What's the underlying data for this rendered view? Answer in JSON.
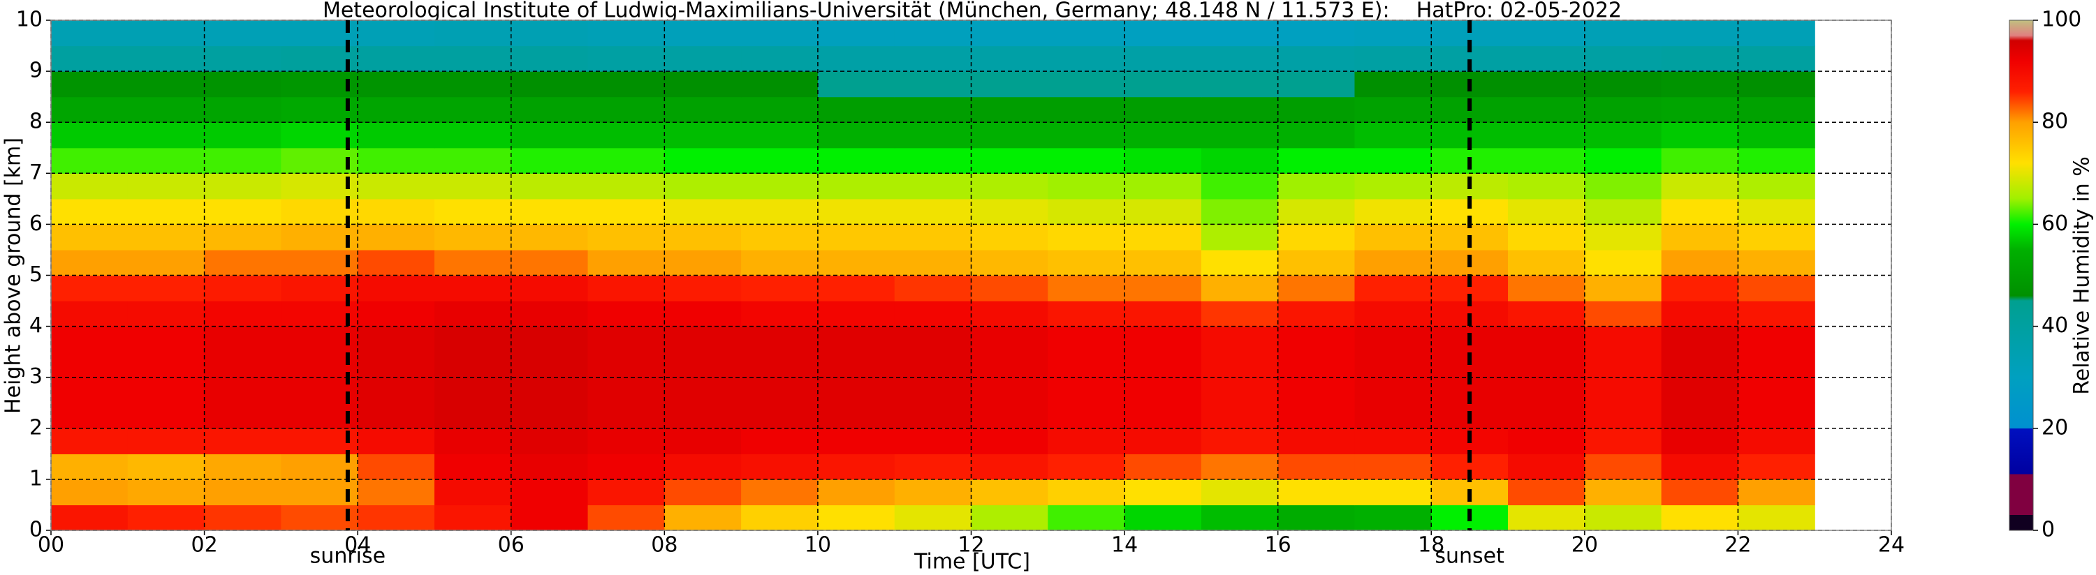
{
  "chart_data": {
    "type": "heatmap",
    "title": "Meteorological Institute of Ludwig-Maximilians-Universität (München, Germany; 48.148 N / 11.573 E):    HatPro: 02-05-2022",
    "xlabel": "Time [UTC]",
    "ylabel": "Height above ground [km]",
    "colorbar_label": "Relative Humidity in %",
    "xlim": [
      0,
      24
    ],
    "ylim": [
      0,
      10
    ],
    "clim": [
      0,
      100
    ],
    "xticks": [
      {
        "value": 0,
        "label": "00"
      },
      {
        "value": 2,
        "label": "02"
      },
      {
        "value": 4,
        "label": "04"
      },
      {
        "value": 6,
        "label": "06"
      },
      {
        "value": 8,
        "label": "08"
      },
      {
        "value": 10,
        "label": "10"
      },
      {
        "value": 12,
        "label": "12"
      },
      {
        "value": 14,
        "label": "14"
      },
      {
        "value": 16,
        "label": "16"
      },
      {
        "value": 18,
        "label": "18"
      },
      {
        "value": 20,
        "label": "20"
      },
      {
        "value": 22,
        "label": "22"
      },
      {
        "value": 24,
        "label": "24"
      }
    ],
    "yticks": [
      0,
      1,
      2,
      3,
      4,
      5,
      6,
      7,
      8,
      9,
      10
    ],
    "cticks": [
      0,
      20,
      40,
      60,
      80,
      100
    ],
    "grid": true,
    "annotations": [
      {
        "text": "sunrise",
        "x": 3.87
      },
      {
        "text": "sunset",
        "x": 18.5
      }
    ],
    "colorscale": [
      [
        0,
        "#100020"
      ],
      [
        3,
        "#100020"
      ],
      [
        3,
        "#800040"
      ],
      [
        11,
        "#800040"
      ],
      [
        11,
        "#0000a0"
      ],
      [
        20,
        "#0010c0"
      ],
      [
        20,
        "#0090d0"
      ],
      [
        30,
        "#00a0c0"
      ],
      [
        45,
        "#00a090"
      ],
      [
        46,
        "#009000"
      ],
      [
        55,
        "#00b000"
      ],
      [
        60,
        "#00f000"
      ],
      [
        65,
        "#a0f000"
      ],
      [
        72,
        "#ffe000"
      ],
      [
        80,
        "#ffa000"
      ],
      [
        86,
        "#ff2000"
      ],
      [
        92,
        "#f00000"
      ],
      [
        96,
        "#d00000"
      ],
      [
        97,
        "#e08080"
      ],
      [
        100,
        "#c0c080"
      ]
    ],
    "x_edges": [
      0,
      1,
      2,
      3,
      4,
      5,
      6,
      7,
      8,
      9,
      10,
      11,
      12,
      13,
      14,
      15,
      16,
      17,
      18,
      19,
      20,
      21,
      22,
      23
    ],
    "y_edges": [
      0,
      0.5,
      1,
      1.5,
      2,
      2.5,
      3,
      3.5,
      4,
      4.5,
      5,
      5.5,
      6,
      6.5,
      7,
      7.5,
      8,
      8.5,
      9,
      9.5,
      10
    ],
    "values": [
      [
        88,
        86,
        85,
        84,
        85,
        88,
        92,
        84,
        78,
        74,
        72,
        70,
        66,
        62,
        58,
        56,
        54,
        55,
        60,
        70,
        68,
        72,
        70
      ],
      [
        80,
        79,
        80,
        80,
        82,
        90,
        92,
        88,
        84,
        82,
        80,
        78,
        76,
        74,
        72,
        70,
        72,
        72,
        76,
        84,
        78,
        84,
        80
      ],
      [
        78,
        77,
        79,
        80,
        84,
        92,
        93,
        92,
        90,
        89,
        88,
        87,
        88,
        86,
        84,
        82,
        84,
        84,
        86,
        90,
        84,
        90,
        86
      ],
      [
        88,
        88,
        88,
        88,
        90,
        93,
        94,
        93,
        93,
        92,
        92,
        92,
        92,
        90,
        90,
        88,
        90,
        90,
        91,
        92,
        88,
        93,
        90
      ],
      [
        92,
        92,
        93,
        93,
        94,
        95,
        95,
        94,
        94,
        94,
        94,
        94,
        93,
        92,
        92,
        90,
        92,
        93,
        93,
        93,
        90,
        94,
        92
      ],
      [
        92,
        92,
        93,
        93,
        94,
        95,
        95,
        94,
        94,
        94,
        94,
        94,
        93,
        92,
        92,
        90,
        92,
        93,
        93,
        93,
        90,
        94,
        92
      ],
      [
        92,
        92,
        93,
        93,
        94,
        95,
        95,
        94,
        94,
        94,
        94,
        94,
        93,
        92,
        92,
        90,
        92,
        93,
        93,
        93,
        90,
        94,
        92
      ],
      [
        92,
        92,
        93,
        93,
        94,
        95,
        95,
        94,
        94,
        94,
        94,
        94,
        93,
        92,
        92,
        90,
        92,
        93,
        93,
        93,
        90,
        94,
        92
      ],
      [
        90,
        90,
        91,
        91,
        92,
        93,
        93,
        92,
        92,
        91,
        91,
        91,
        90,
        88,
        88,
        85,
        88,
        90,
        90,
        88,
        84,
        90,
        88
      ],
      [
        86,
        86,
        87,
        88,
        90,
        90,
        90,
        88,
        87,
        86,
        86,
        85,
        84,
        82,
        82,
        78,
        82,
        86,
        86,
        82,
        78,
        86,
        84
      ],
      [
        80,
        80,
        82,
        82,
        84,
        82,
        82,
        80,
        80,
        78,
        78,
        78,
        77,
        76,
        76,
        72,
        76,
        80,
        80,
        76,
        72,
        80,
        78
      ],
      [
        76,
        76,
        77,
        78,
        78,
        77,
        77,
        76,
        76,
        75,
        75,
        75,
        74,
        73,
        73,
        66,
        73,
        76,
        76,
        73,
        70,
        76,
        74
      ],
      [
        72,
        72,
        72,
        73,
        73,
        72,
        72,
        72,
        71,
        71,
        71,
        71,
        70,
        69,
        69,
        64,
        69,
        71,
        72,
        70,
        67,
        72,
        70
      ],
      [
        68,
        68,
        68,
        69,
        68,
        68,
        67,
        67,
        66,
        66,
        66,
        66,
        66,
        65,
        65,
        62,
        65,
        66,
        67,
        66,
        64,
        68,
        66
      ],
      [
        62,
        62,
        62,
        63,
        62,
        62,
        61,
        61,
        60,
        60,
        60,
        60,
        60,
        60,
        59,
        58,
        60,
        60,
        61,
        61,
        60,
        62,
        61
      ],
      [
        57,
        57,
        57,
        58,
        57,
        57,
        56,
        56,
        56,
        56,
        55,
        55,
        55,
        55,
        55,
        55,
        55,
        56,
        56,
        56,
        56,
        57,
        56
      ],
      [
        52,
        52,
        52,
        53,
        52,
        52,
        51,
        51,
        51,
        51,
        50,
        50,
        50,
        50,
        50,
        50,
        50,
        51,
        51,
        51,
        51,
        52,
        51
      ],
      [
        47,
        47,
        47,
        48,
        47,
        47,
        46,
        46,
        46,
        46,
        45,
        45,
        45,
        45,
        45,
        45,
        45,
        46,
        46,
        46,
        46,
        47,
        46
      ],
      [
        40,
        40,
        40,
        41,
        40,
        40,
        40,
        39,
        39,
        39,
        38,
        38,
        38,
        38,
        38,
        38,
        38,
        39,
        39,
        39,
        39,
        40,
        40
      ],
      [
        34,
        34,
        33,
        33,
        33,
        34,
        34,
        33,
        32,
        32,
        31,
        31,
        31,
        31,
        30,
        30,
        30,
        31,
        32,
        32,
        33,
        33,
        33
      ]
    ]
  }
}
